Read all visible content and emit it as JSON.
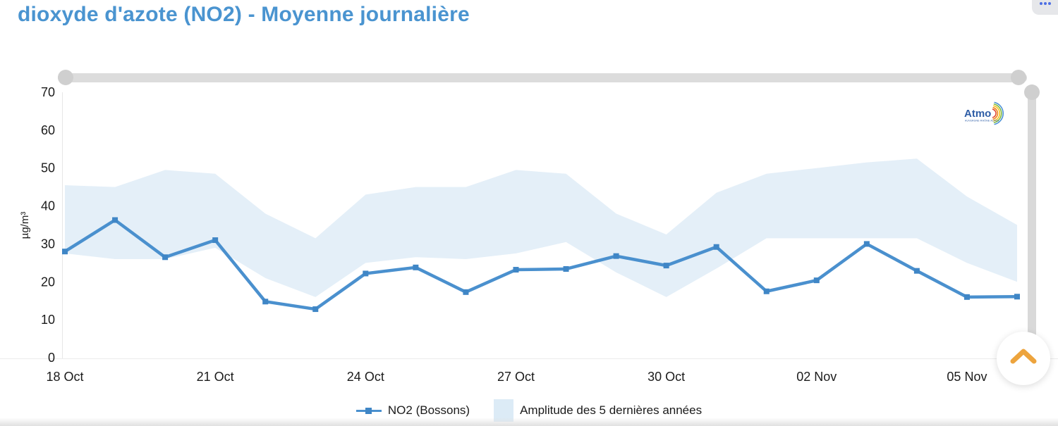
{
  "title": "dioxyde d'azote (NO2) - Moyenne journalière",
  "menu": {
    "icon": "ellipsis-dots"
  },
  "chart_data": {
    "type": "line",
    "x": [
      "18 Oct",
      "19 Oct",
      "20 Oct",
      "21 Oct",
      "22 Oct",
      "23 Oct",
      "24 Oct",
      "25 Oct",
      "26 Oct",
      "27 Oct",
      "28 Oct",
      "29 Oct",
      "30 Oct",
      "31 Oct",
      "01 Nov",
      "02 Nov",
      "03 Nov",
      "04 Nov",
      "05 Nov",
      "06 Nov"
    ],
    "x_tick_labels": [
      "18 Oct",
      "21 Oct",
      "24 Oct",
      "27 Oct",
      "30 Oct",
      "02 Nov",
      "05 Nov"
    ],
    "x_tick_indices": [
      0,
      3,
      6,
      9,
      12,
      15,
      18
    ],
    "series": [
      {
        "name": "NO2 (Bossons)",
        "type": "line",
        "values": [
          28,
          36.3,
          26.5,
          31,
          14.8,
          12.8,
          22.2,
          23.8,
          17.3,
          23.2,
          23.4,
          26.8,
          24.3,
          29.2,
          17.5,
          20.4,
          30,
          22.9,
          16,
          16.1
        ]
      },
      {
        "name": "Amplitude des 5 dernières années",
        "type": "band",
        "upper": [
          45.5,
          45,
          49.5,
          48.5,
          38,
          31.5,
          43,
          45,
          45,
          49.5,
          48.5,
          38,
          32.5,
          43.5,
          48.5,
          50,
          51.5,
          52.5,
          42.5,
          35
        ],
        "lower": [
          27.5,
          26,
          26,
          29,
          21,
          16,
          25,
          26.5,
          26,
          27.5,
          30.5,
          22.5,
          16,
          23.5,
          31.5,
          31.5,
          31.5,
          31.5,
          25,
          20
        ]
      }
    ],
    "title": "dioxyde d'azote (NO2) - Moyenne journalière",
    "xlabel": "",
    "ylabel": "µg/m³",
    "ylim": [
      0,
      70
    ],
    "y_ticks": [
      0,
      10,
      20,
      30,
      40,
      50,
      60,
      70
    ],
    "grid": false,
    "legend_position": "bottom-center"
  },
  "legend": {
    "items": [
      {
        "label": "NO2 (Bossons)",
        "swatch": "line-marker"
      },
      {
        "label": "Amplitude des 5 dernières années",
        "swatch": "area"
      }
    ]
  },
  "logo": {
    "name": "Atmo",
    "region": "AUVERGNE-RHÔNE-ALPES"
  },
  "colors": {
    "title_blue": "#4a94d0",
    "line_blue": "#4a90ce",
    "marker_blue": "#3f86c6",
    "band_fill": "#e4eff8",
    "chevron_orange": "#eda43d",
    "slider_gray": "#dcdcdc",
    "menu_dots_blue": "#4d6fe3",
    "axis_text": "#1b1b1b"
  }
}
